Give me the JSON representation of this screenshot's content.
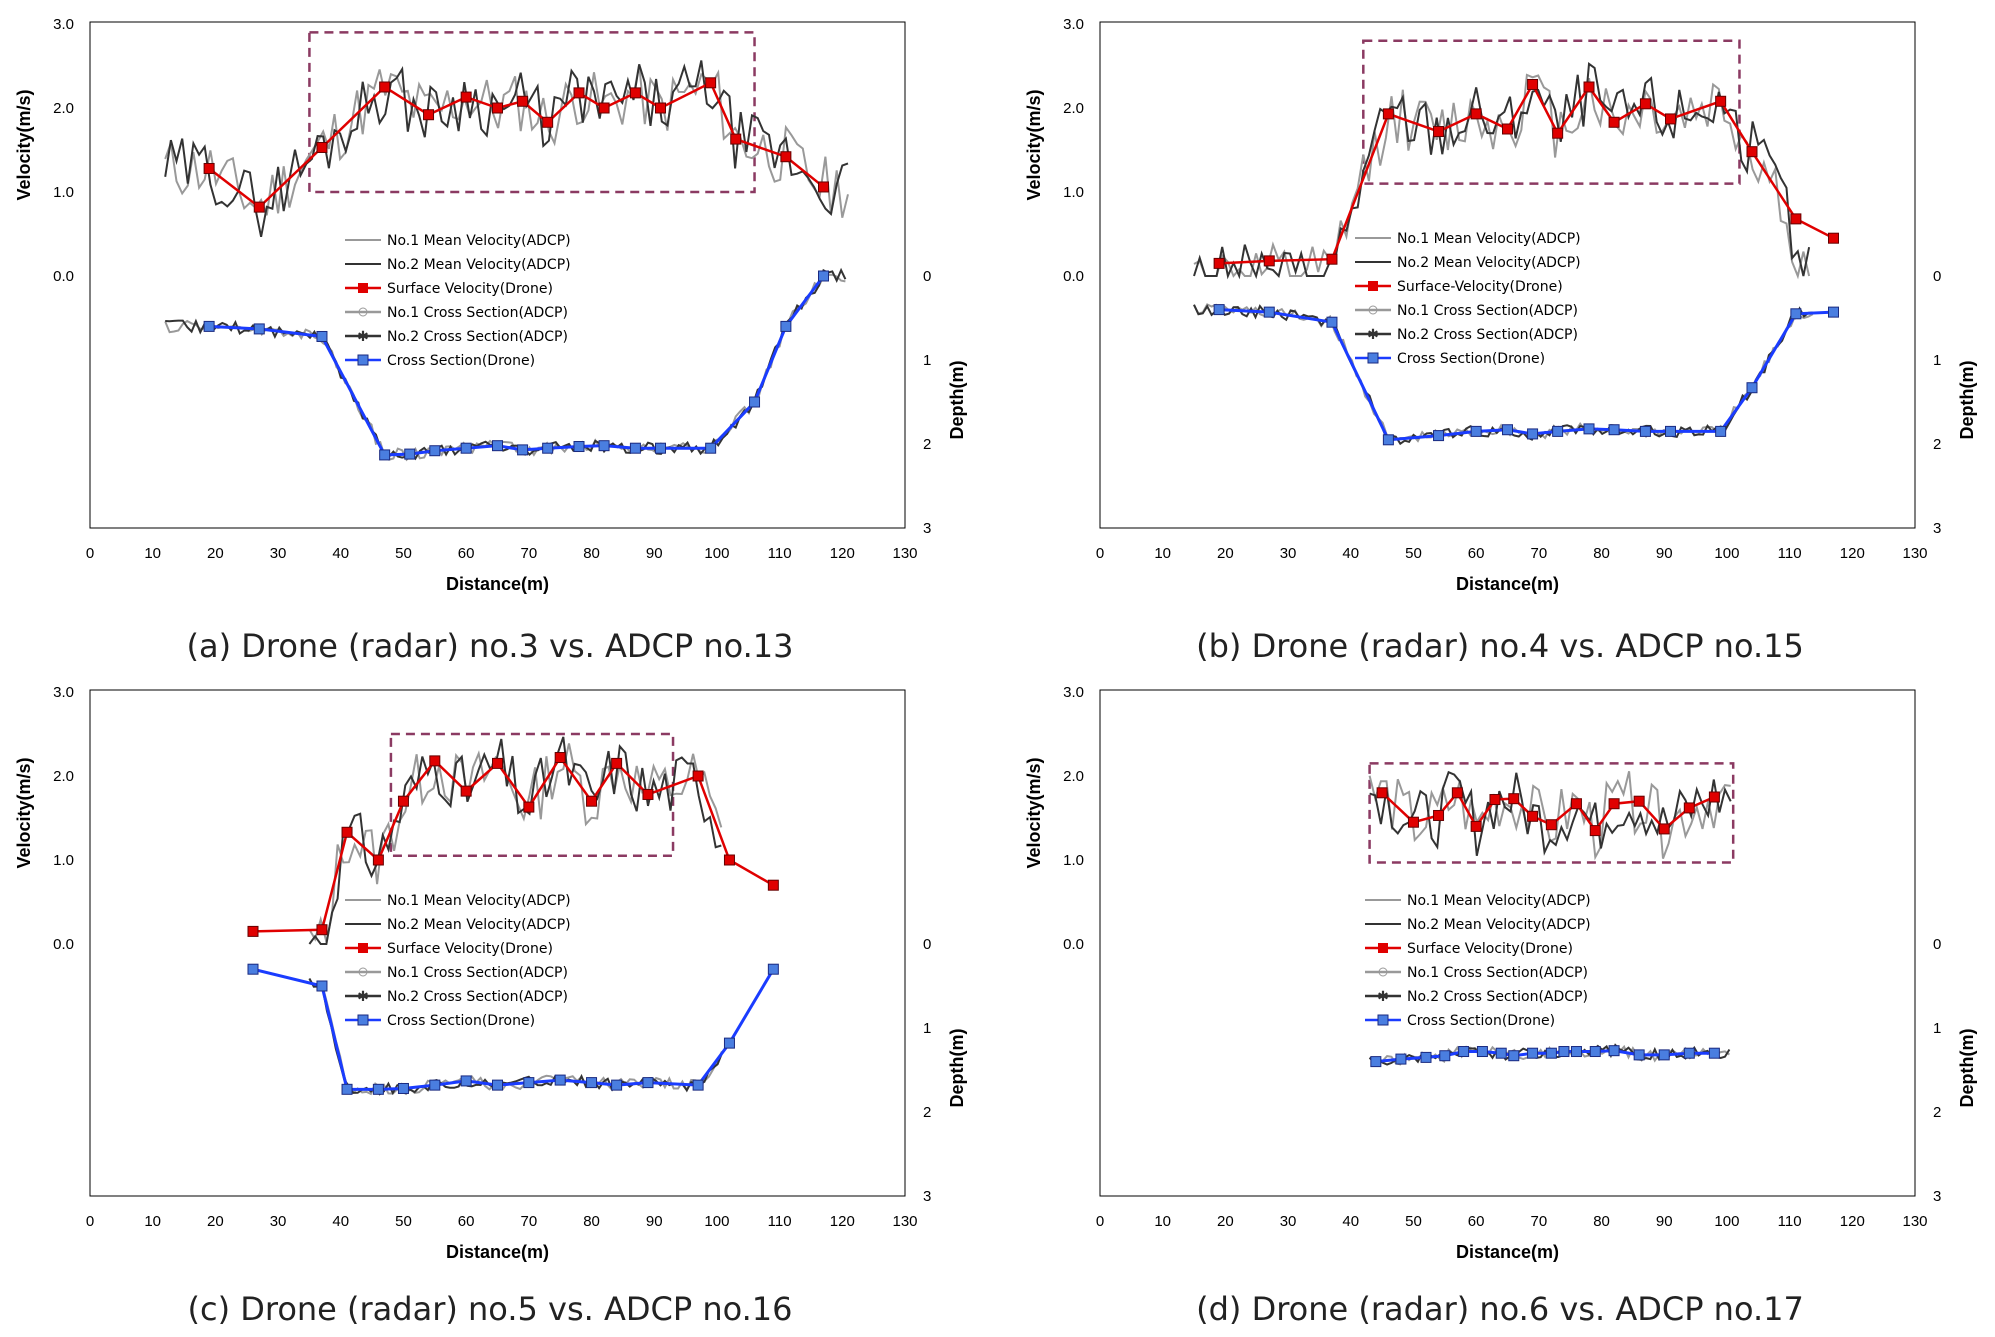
{
  "figure": {
    "captions": [
      "(a) Drone (radar) no.3 vs. ADCP no.13",
      "(b) Drone (radar) no.4 vs. ADCP no.15",
      "(c) Drone (radar) no.5 vs. ADCP no.16",
      "(d) Drone (radar) no.6 vs. ADCP no.17"
    ]
  },
  "colors": {
    "surface_velocity": "#e00000",
    "cross_section_drone": "#1a3cff",
    "adcp_no1": "#999999",
    "adcp_no2": "#333333",
    "highlight_box": "#8b3a62"
  },
  "chart_data": [
    {
      "type": "line",
      "xlabel": "Distance(m)",
      "ylabel_left": "Velocity(m/s)",
      "ylabel_right": "Depth(m)",
      "xlim": [
        0,
        130
      ],
      "x_ticks": [
        "0",
        "10",
        "20",
        "30",
        "40",
        "50",
        "60",
        "70",
        "80",
        "90",
        "100",
        "110",
        "120",
        "130"
      ],
      "y_left_ticks": [
        "0.0",
        "1.0",
        "2.0",
        "3.0"
      ],
      "y_right_ticks": [
        "0",
        "1",
        "2",
        "3"
      ],
      "legend": [
        "No.1 Mean Velocity(ADCP)",
        "No.2 Mean Velocity(ADCP)",
        "Surface Velocity(Drone)",
        "No.1 Cross Section(ADCP)",
        "No.2 Cross Section(ADCP)",
        "Cross Section(Drone)"
      ],
      "highlight_box": {
        "x": [
          35,
          106
        ],
        "velocity": [
          1.0,
          2.9
        ]
      },
      "adcp_velocity_range": [
        12,
        121
      ],
      "adcp_depth_range": [
        12,
        121
      ],
      "series": [
        {
          "name": "Surface Velocity(Drone)",
          "axis": "velocity",
          "x": [
            19,
            27,
            37,
            47,
            54,
            60,
            65,
            69,
            73,
            78,
            82,
            87,
            91,
            99,
            103,
            111,
            117
          ],
          "y": [
            1.28,
            0.82,
            1.53,
            2.25,
            1.92,
            2.13,
            2.0,
            2.08,
            1.83,
            2.18,
            2.0,
            2.18,
            2.0,
            2.3,
            1.63,
            1.42,
            1.06
          ]
        },
        {
          "name": "Cross Section(Drone)",
          "axis": "depth",
          "x": [
            19,
            27,
            37,
            47,
            51,
            55,
            60,
            65,
            69,
            73,
            78,
            82,
            87,
            91,
            99,
            106,
            111,
            117
          ],
          "y": [
            0.6,
            0.63,
            0.72,
            2.13,
            2.12,
            2.08,
            2.05,
            2.02,
            2.07,
            2.05,
            2.03,
            2.02,
            2.05,
            2.05,
            2.05,
            1.5,
            0.6,
            0.0
          ]
        }
      ]
    },
    {
      "type": "line",
      "xlabel": "Distance(m)",
      "ylabel_left": "Velocity(m/s)",
      "ylabel_right": "Depth(m)",
      "xlim": [
        0,
        130
      ],
      "x_ticks": [
        "0",
        "10",
        "20",
        "30",
        "40",
        "50",
        "60",
        "70",
        "80",
        "90",
        "100",
        "110",
        "120",
        "130"
      ],
      "y_left_ticks": [
        "0.0",
        "1.0",
        "2.0",
        "3.0"
      ],
      "y_right_ticks": [
        "0",
        "1",
        "2",
        "3"
      ],
      "legend": [
        "No.1 Mean Velocity(ADCP)",
        "No.2 Mean Velocity(ADCP)",
        "Surface-Velocity(Drone)",
        "No.1 Cross Section(ADCP)",
        "No.2 Cross Section(ADCP)",
        "Cross Section(Drone)"
      ],
      "highlight_box": {
        "x": [
          42,
          102
        ],
        "velocity": [
          1.1,
          2.8
        ]
      },
      "adcp_velocity_range": [
        15,
        114
      ],
      "adcp_depth_range": [
        15,
        114
      ],
      "series": [
        {
          "name": "Surface-Velocity(Drone)",
          "axis": "velocity",
          "x": [
            19,
            27,
            37,
            46,
            54,
            60,
            65,
            69,
            73,
            78,
            82,
            87,
            91,
            99,
            104,
            111,
            117
          ],
          "y": [
            0.15,
            0.18,
            0.2,
            1.93,
            1.72,
            1.93,
            1.75,
            2.28,
            1.7,
            2.25,
            1.83,
            2.05,
            1.87,
            2.08,
            1.48,
            0.68,
            0.45
          ]
        },
        {
          "name": "Cross Section(Drone)",
          "axis": "depth",
          "x": [
            19,
            27,
            37,
            46,
            54,
            60,
            65,
            69,
            73,
            78,
            82,
            87,
            91,
            99,
            104,
            111,
            117
          ],
          "y": [
            0.4,
            0.43,
            0.55,
            1.95,
            1.9,
            1.85,
            1.83,
            1.88,
            1.85,
            1.82,
            1.83,
            1.85,
            1.85,
            1.85,
            1.33,
            0.45,
            0.43
          ]
        }
      ]
    },
    {
      "type": "line",
      "xlabel": "Distance(m)",
      "ylabel_left": "Velocity(m/s)",
      "ylabel_right": "Depth(m)",
      "xlim": [
        0,
        130
      ],
      "x_ticks": [
        "0",
        "10",
        "20",
        "30",
        "40",
        "50",
        "60",
        "70",
        "80",
        "90",
        "100",
        "110",
        "120",
        "130"
      ],
      "y_left_ticks": [
        "0.0",
        "1.0",
        "2.0",
        "3.0"
      ],
      "y_right_ticks": [
        "0",
        "1",
        "2",
        "3"
      ],
      "legend": [
        "No.1 Mean Velocity(ADCP)",
        "No.2 Mean Velocity(ADCP)",
        "Surface Velocity(Drone)",
        "No.1 Cross Section(ADCP)",
        "No.2 Cross Section(ADCP)",
        "Cross Section(Drone)"
      ],
      "highlight_box": {
        "x": [
          48,
          93
        ],
        "velocity": [
          1.05,
          2.5
        ]
      },
      "adcp_velocity_range": [
        35,
        101
      ],
      "adcp_depth_range": [
        35,
        101
      ],
      "series": [
        {
          "name": "Surface Velocity(Drone)",
          "axis": "velocity",
          "x": [
            26,
            37,
            41,
            46,
            50,
            55,
            60,
            65,
            70,
            75,
            80,
            84,
            89,
            97,
            102,
            109
          ],
          "y": [
            0.15,
            0.17,
            1.33,
            1.0,
            1.7,
            2.18,
            1.82,
            2.15,
            1.63,
            2.22,
            1.7,
            2.15,
            1.78,
            2.0,
            1.0,
            0.7
          ]
        },
        {
          "name": "Cross Section(Drone)",
          "axis": "depth",
          "x": [
            26,
            37,
            41,
            46,
            50,
            55,
            60,
            65,
            70,
            75,
            80,
            84,
            89,
            97,
            102,
            109
          ],
          "y": [
            0.3,
            0.5,
            1.73,
            1.73,
            1.72,
            1.68,
            1.63,
            1.68,
            1.65,
            1.62,
            1.65,
            1.68,
            1.65,
            1.68,
            1.18,
            0.3
          ]
        }
      ]
    },
    {
      "type": "line",
      "xlabel": "Distance(m)",
      "ylabel_left": "Velocity(m/s)",
      "ylabel_right": "Depth(m)",
      "xlim": [
        0,
        130
      ],
      "x_ticks": [
        "0",
        "10",
        "20",
        "30",
        "40",
        "50",
        "60",
        "70",
        "80",
        "90",
        "100",
        "110",
        "120",
        "130"
      ],
      "y_left_ticks": [
        "0.0",
        "1.0",
        "2.0",
        "3.0"
      ],
      "y_right_ticks": [
        "0",
        "1",
        "2",
        "3"
      ],
      "legend": [
        "No.1 Mean Velocity(ADCP)",
        "No.2 Mean Velocity(ADCP)",
        "Surface Velocity(Drone)",
        "No.1 Cross Section(ADCP)",
        "No.2 Cross Section(ADCP)",
        "Cross Section(Drone)"
      ],
      "highlight_box": {
        "x": [
          43,
          101
        ],
        "velocity": [
          0.97,
          2.15
        ]
      },
      "adcp_velocity_range": [
        43,
        101
      ],
      "adcp_depth_range": [
        43,
        101
      ],
      "series": [
        {
          "name": "Surface Velocity(Drone)",
          "axis": "velocity",
          "x": [
            45,
            50,
            54,
            57,
            60,
            63,
            66,
            69,
            72,
            76,
            79,
            82,
            86,
            90,
            94,
            98
          ],
          "y": [
            1.8,
            1.45,
            1.53,
            1.8,
            1.4,
            1.72,
            1.73,
            1.52,
            1.42,
            1.67,
            1.35,
            1.67,
            1.7,
            1.37,
            1.62,
            1.75
          ]
        },
        {
          "name": "Cross Section(Drone)",
          "axis": "depth",
          "x": [
            44,
            48,
            52,
            55,
            58,
            61,
            64,
            66,
            69,
            72,
            74,
            76,
            79,
            82,
            86,
            90,
            94,
            98
          ],
          "y": [
            1.4,
            1.37,
            1.35,
            1.33,
            1.28,
            1.28,
            1.3,
            1.33,
            1.3,
            1.3,
            1.28,
            1.28,
            1.28,
            1.27,
            1.32,
            1.32,
            1.3,
            1.3
          ]
        }
      ]
    }
  ]
}
